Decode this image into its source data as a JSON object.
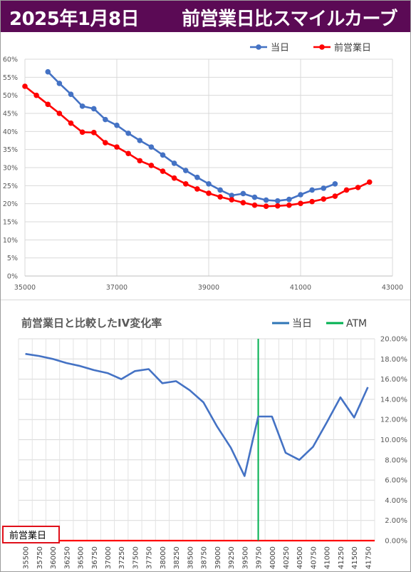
{
  "header": {
    "date": "2025年1月8日",
    "title": "前営業日比スマイルカーブ"
  },
  "chart_data": [
    {
      "type": "line",
      "x_axis": {
        "min": 35000,
        "max": 43000,
        "ticks": [
          35000,
          37000,
          39000,
          41000,
          43000
        ]
      },
      "y_axis": {
        "min": 0,
        "max": 60,
        "step": 5,
        "tick_suffix": "%"
      },
      "grid": true,
      "legend_position": "top-right",
      "series": [
        {
          "name": "当日",
          "color": "#4472c4",
          "x": [
            35500,
            35750,
            36000,
            36250,
            36500,
            36750,
            37000,
            37250,
            37500,
            37750,
            38000,
            38250,
            38500,
            38750,
            39000,
            39250,
            39500,
            39750,
            40000,
            40250,
            40500,
            40750,
            41000,
            41250,
            41500,
            41750
          ],
          "y": [
            56.5,
            53.3,
            50.3,
            47.0,
            46.3,
            43.3,
            41.7,
            39.5,
            37.5,
            35.7,
            33.5,
            31.2,
            29.2,
            27.3,
            25.5,
            23.8,
            22.3,
            22.8,
            21.8,
            21.0,
            20.8,
            21.2,
            22.5,
            23.8,
            24.3,
            25.5
          ]
        },
        {
          "name": "前営業日",
          "color": "#ff0000",
          "x": [
            35000,
            35250,
            35500,
            35750,
            36000,
            36250,
            36500,
            36750,
            37000,
            37250,
            37500,
            37750,
            38000,
            38250,
            38500,
            38750,
            39000,
            39250,
            39500,
            39750,
            40000,
            40250,
            40500,
            40750,
            41000,
            41250,
            41500,
            41750,
            42000,
            42250,
            42500
          ],
          "y": [
            52.5,
            50.0,
            47.5,
            45.0,
            42.3,
            39.8,
            39.7,
            36.9,
            35.7,
            33.9,
            31.9,
            30.6,
            29.0,
            27.1,
            25.5,
            24.1,
            22.9,
            21.9,
            21.1,
            20.3,
            19.6,
            19.3,
            19.4,
            19.6,
            20.1,
            20.6,
            21.3,
            22.1,
            23.8,
            24.5,
            26.0
          ]
        }
      ]
    },
    {
      "type": "line",
      "title": "前営業日と比較したIV変化率",
      "categories": [
        "35500",
        "35750",
        "36000",
        "36250",
        "36500",
        "36750",
        "37000",
        "37250",
        "37500",
        "37750",
        "38000",
        "38250",
        "38500",
        "38750",
        "39000",
        "39250",
        "39500",
        "39750",
        "40000",
        "40250",
        "40500",
        "40750",
        "41000",
        "41250",
        "41500",
        "41750"
      ],
      "y_axis": {
        "min": 0,
        "max": 20,
        "step": 2,
        "tick_suffix": "%",
        "position": "right"
      },
      "grid": true,
      "legend_position": "top-right",
      "series": [
        {
          "name": "当日",
          "color": "#4472c4",
          "values": [
            18.5,
            18.3,
            18.0,
            17.6,
            17.3,
            16.9,
            16.6,
            16.0,
            16.8,
            17.0,
            15.6,
            15.8,
            14.9,
            13.7,
            11.3,
            9.2,
            6.4,
            12.3,
            12.3,
            8.7,
            8.0,
            9.3,
            11.7,
            14.2,
            12.2,
            15.2
          ]
        },
        {
          "name": "ATM",
          "color": "#00b050",
          "category": "39750"
        },
        {
          "name": "前営業日",
          "color": "#ff0000",
          "value": 0
        }
      ]
    }
  ]
}
